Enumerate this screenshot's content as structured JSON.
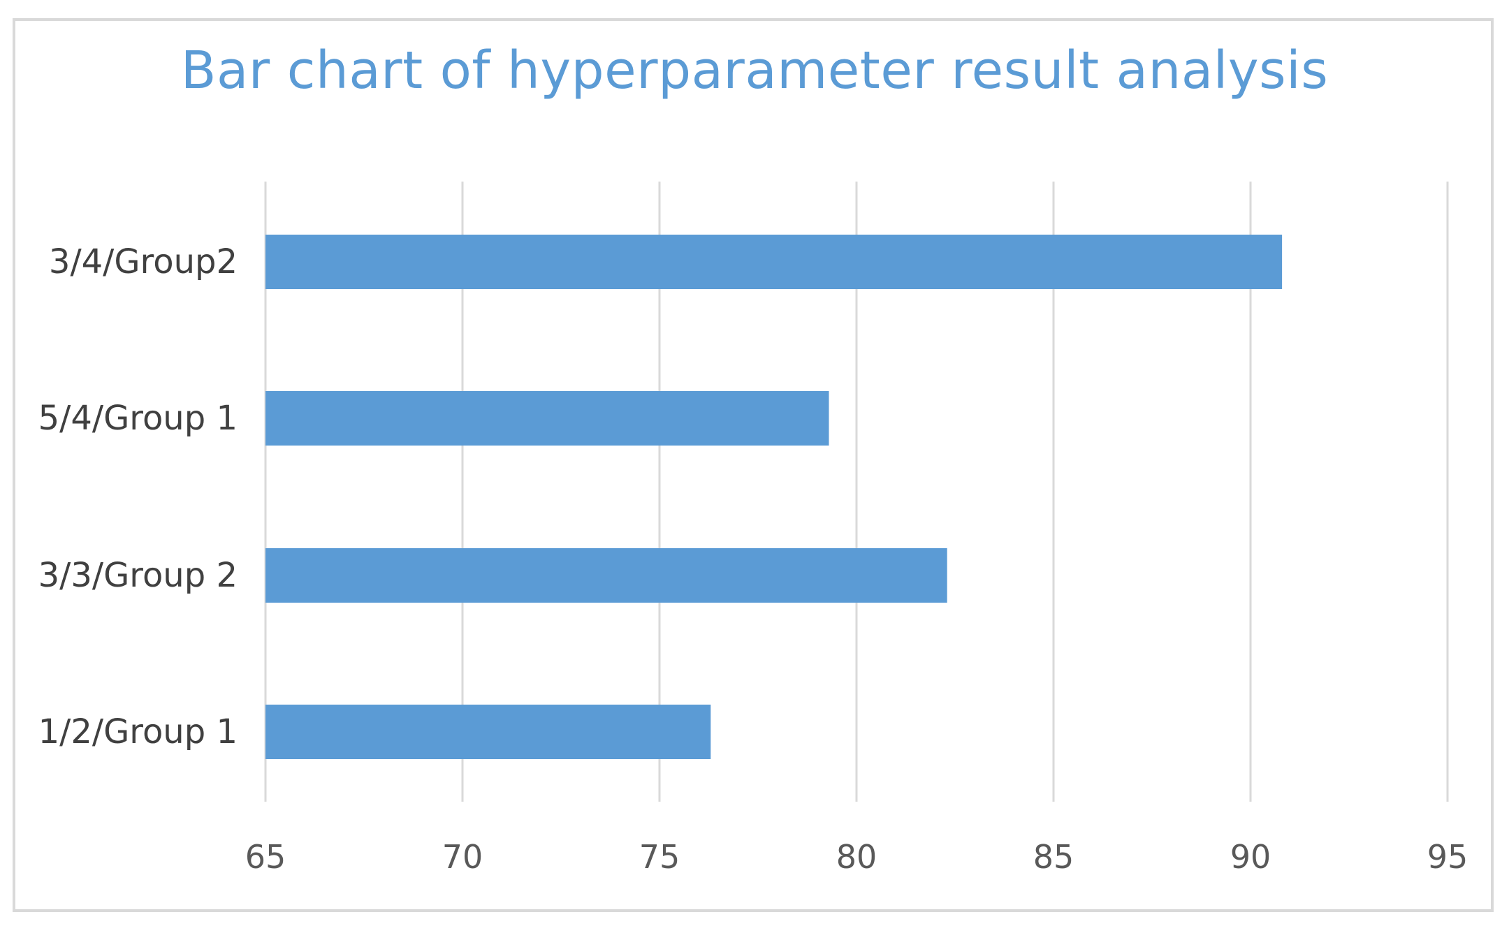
{
  "chart_data": {
    "type": "bar",
    "orientation": "horizontal",
    "title": "Bar chart of hyperparameter result analysis",
    "xlabel": "",
    "ylabel": "",
    "categories": [
      "3/4/Group2",
      "5/4/Group 1",
      "3/3/Group 2",
      "1/2/Group 1"
    ],
    "values": [
      90.8,
      79.3,
      82.3,
      76.3
    ],
    "xlim": [
      65,
      95
    ],
    "xticks": [
      "65",
      "70",
      "75",
      "80",
      "85",
      "90",
      "95"
    ],
    "grid": "vertical",
    "legend": "none",
    "bar_color": "#5b9bd5",
    "grid_color": "#d9d9d9",
    "title_color": "#5b9bd5"
  }
}
